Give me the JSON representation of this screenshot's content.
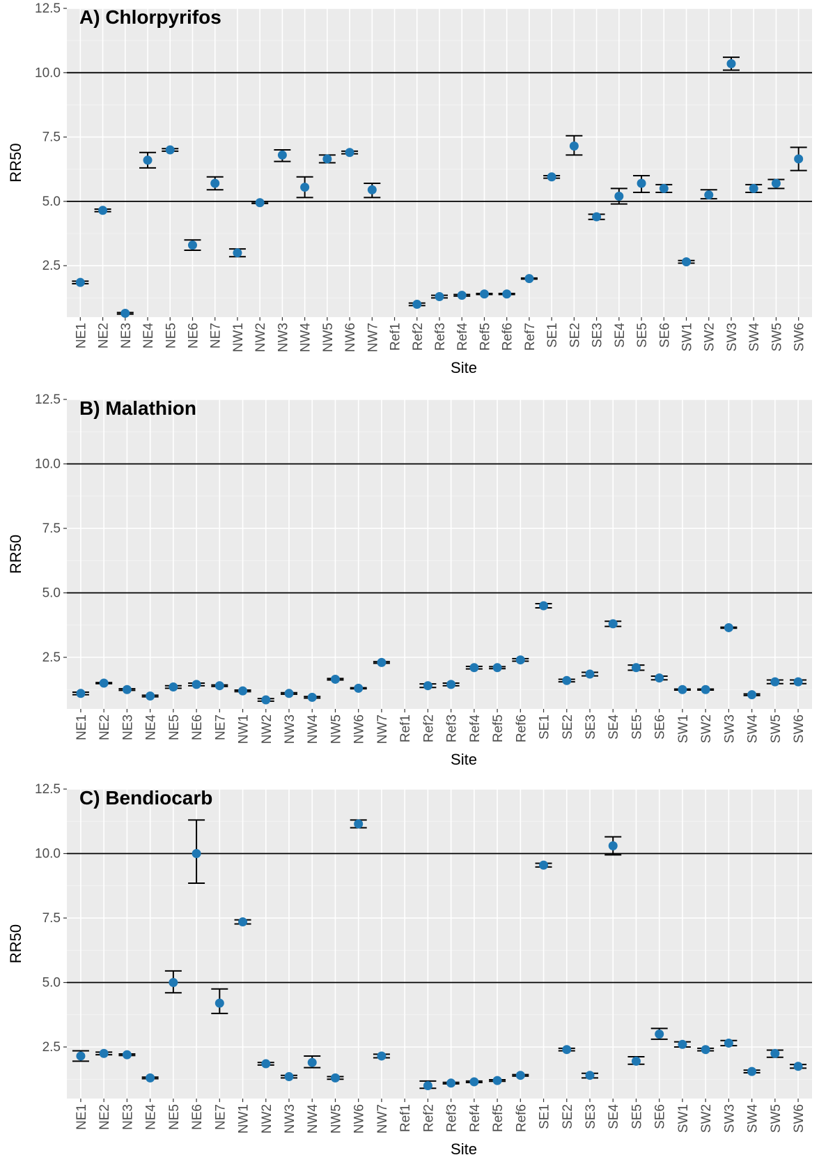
{
  "colors": {
    "point": "#1f78b4",
    "panel": "#ebebeb",
    "grid": "#ffffff",
    "reference_line": "#000000"
  },
  "chart_data": [
    {
      "type": "scatter",
      "title": "A) Chlorpyrifos",
      "xlabel": "Site",
      "ylabel": "RR50",
      "ylim": [
        0.5,
        12.5
      ],
      "yticks": [
        "2.5",
        "5.0",
        "7.5",
        "10.0",
        "12.5"
      ],
      "reference_lines": [
        5.0,
        10.0
      ],
      "categories": [
        "NE1",
        "NE2",
        "NE3",
        "NE4",
        "NE5",
        "NE6",
        "NE7",
        "NW1",
        "NW2",
        "NW3",
        "NW4",
        "NW5",
        "NW6",
        "NW7",
        "Ref1",
        "Ref2",
        "Ref3",
        "Ref4",
        "Ref5",
        "Ref6",
        "Ref7",
        "SE1",
        "SE2",
        "SE3",
        "SE4",
        "SE5",
        "SE6",
        "SW1",
        "SW2",
        "SW3",
        "SW4",
        "SW5",
        "SW6"
      ],
      "series": [
        {
          "values": [
            1.85,
            4.65,
            0.65,
            6.6,
            7.0,
            3.3,
            5.7,
            3.0,
            4.95,
            6.8,
            5.55,
            6.65,
            6.9,
            5.45,
            null,
            1.0,
            1.3,
            1.35,
            1.4,
            1.4,
            2.0,
            5.95,
            7.15,
            4.4,
            5.2,
            5.7,
            5.5,
            2.65,
            5.25,
            10.35,
            5.5,
            5.7,
            6.65
          ],
          "err_low": [
            1.8,
            4.6,
            0.62,
            6.3,
            6.95,
            3.1,
            5.45,
            2.85,
            4.92,
            6.55,
            5.15,
            6.5,
            6.85,
            5.15,
            null,
            0.95,
            1.25,
            1.32,
            1.38,
            1.38,
            1.98,
            5.9,
            6.8,
            4.3,
            4.9,
            5.35,
            5.35,
            2.6,
            5.1,
            10.1,
            5.35,
            5.5,
            6.2
          ],
          "err_high": [
            1.9,
            4.7,
            0.68,
            6.9,
            7.05,
            3.5,
            5.95,
            3.15,
            4.98,
            7.0,
            5.95,
            6.8,
            6.95,
            5.7,
            null,
            1.05,
            1.35,
            1.38,
            1.42,
            1.42,
            2.02,
            6.0,
            7.55,
            4.5,
            5.5,
            6.0,
            5.65,
            2.7,
            5.45,
            10.6,
            5.65,
            5.85,
            7.1
          ]
        }
      ]
    },
    {
      "type": "scatter",
      "title": "B) Malathion",
      "xlabel": "Site",
      "ylabel": "RR50",
      "ylim": [
        0.5,
        12.5
      ],
      "yticks": [
        "2.5",
        "5.0",
        "7.5",
        "10.0",
        "12.5"
      ],
      "reference_lines": [
        5.0,
        10.0
      ],
      "categories": [
        "NE1",
        "NE2",
        "NE3",
        "NE4",
        "NE5",
        "NE6",
        "NE7",
        "NW1",
        "NW2",
        "NW3",
        "NW4",
        "NW5",
        "NW6",
        "NW7",
        "Ref1",
        "Ref2",
        "Ref3",
        "Ref4",
        "Ref5",
        "Ref6",
        "SE1",
        "SE2",
        "SE3",
        "SE4",
        "SE5",
        "SE6",
        "SW1",
        "SW2",
        "SW3",
        "SW4",
        "SW5",
        "SW6"
      ],
      "series": [
        {
          "values": [
            1.1,
            1.5,
            1.25,
            1.0,
            1.35,
            1.45,
            1.4,
            1.2,
            0.85,
            1.1,
            0.95,
            1.65,
            1.3,
            2.3,
            null,
            1.4,
            1.45,
            2.1,
            2.1,
            2.4,
            4.5,
            1.6,
            1.85,
            3.8,
            2.1,
            1.7,
            1.25,
            1.25,
            3.65,
            1.05,
            1.55,
            1.55
          ],
          "err_low": [
            1.05,
            1.48,
            1.22,
            0.97,
            1.3,
            1.4,
            1.37,
            1.17,
            0.8,
            1.07,
            0.92,
            1.62,
            1.28,
            2.27,
            null,
            1.33,
            1.4,
            2.05,
            2.06,
            2.35,
            4.42,
            1.55,
            1.78,
            3.7,
            2.0,
            1.63,
            1.23,
            1.23,
            3.63,
            1.02,
            1.48,
            1.48
          ],
          "err_high": [
            1.15,
            1.52,
            1.28,
            1.03,
            1.4,
            1.5,
            1.43,
            1.23,
            0.9,
            1.13,
            0.98,
            1.68,
            1.32,
            2.33,
            null,
            1.47,
            1.5,
            2.15,
            2.14,
            2.45,
            4.58,
            1.65,
            1.92,
            3.9,
            2.2,
            1.77,
            1.27,
            1.27,
            3.67,
            1.08,
            1.62,
            1.62
          ]
        }
      ]
    },
    {
      "type": "scatter",
      "title": "C) Bendiocarb",
      "xlabel": "Site",
      "ylabel": "RR50",
      "ylim": [
        0.5,
        12.5
      ],
      "yticks": [
        "2.5",
        "5.0",
        "7.5",
        "10.0",
        "12.5"
      ],
      "reference_lines": [
        5.0,
        10.0
      ],
      "categories": [
        "NE1",
        "NE2",
        "NE3",
        "NE4",
        "NE5",
        "NE6",
        "NE7",
        "NW1",
        "NW2",
        "NW3",
        "NW4",
        "NW5",
        "NW6",
        "NW7",
        "Ref1",
        "Ref2",
        "Ref3",
        "Ref4",
        "Ref5",
        "Ref6",
        "SE1",
        "SE2",
        "SE3",
        "SE4",
        "SE5",
        "SE6",
        "SW1",
        "SW2",
        "SW3",
        "SW4",
        "SW5",
        "SW6"
      ],
      "series": [
        {
          "values": [
            2.15,
            2.25,
            2.2,
            1.3,
            5.0,
            10.0,
            4.2,
            7.35,
            1.85,
            1.35,
            1.9,
            1.3,
            11.15,
            2.15,
            null,
            1.0,
            1.1,
            1.15,
            1.2,
            1.4,
            9.55,
            2.4,
            1.4,
            10.3,
            1.95,
            3.0,
            2.6,
            2.4,
            2.65,
            1.55,
            2.25,
            1.75
          ],
          "err_low": [
            1.95,
            2.2,
            2.17,
            1.27,
            4.6,
            8.85,
            3.8,
            7.27,
            1.8,
            1.3,
            1.7,
            1.25,
            11.0,
            2.08,
            null,
            0.9,
            1.07,
            1.12,
            1.17,
            1.37,
            9.48,
            2.35,
            1.3,
            9.95,
            1.83,
            2.8,
            2.5,
            2.35,
            2.55,
            1.5,
            2.1,
            1.68
          ],
          "err_high": [
            2.35,
            2.3,
            2.23,
            1.33,
            5.45,
            11.3,
            4.75,
            7.43,
            1.9,
            1.4,
            2.15,
            1.35,
            11.3,
            2.22,
            null,
            1.18,
            1.13,
            1.18,
            1.23,
            1.43,
            9.62,
            2.45,
            1.48,
            10.65,
            2.12,
            3.22,
            2.7,
            2.45,
            2.75,
            1.6,
            2.38,
            1.82
          ]
        }
      ]
    }
  ]
}
